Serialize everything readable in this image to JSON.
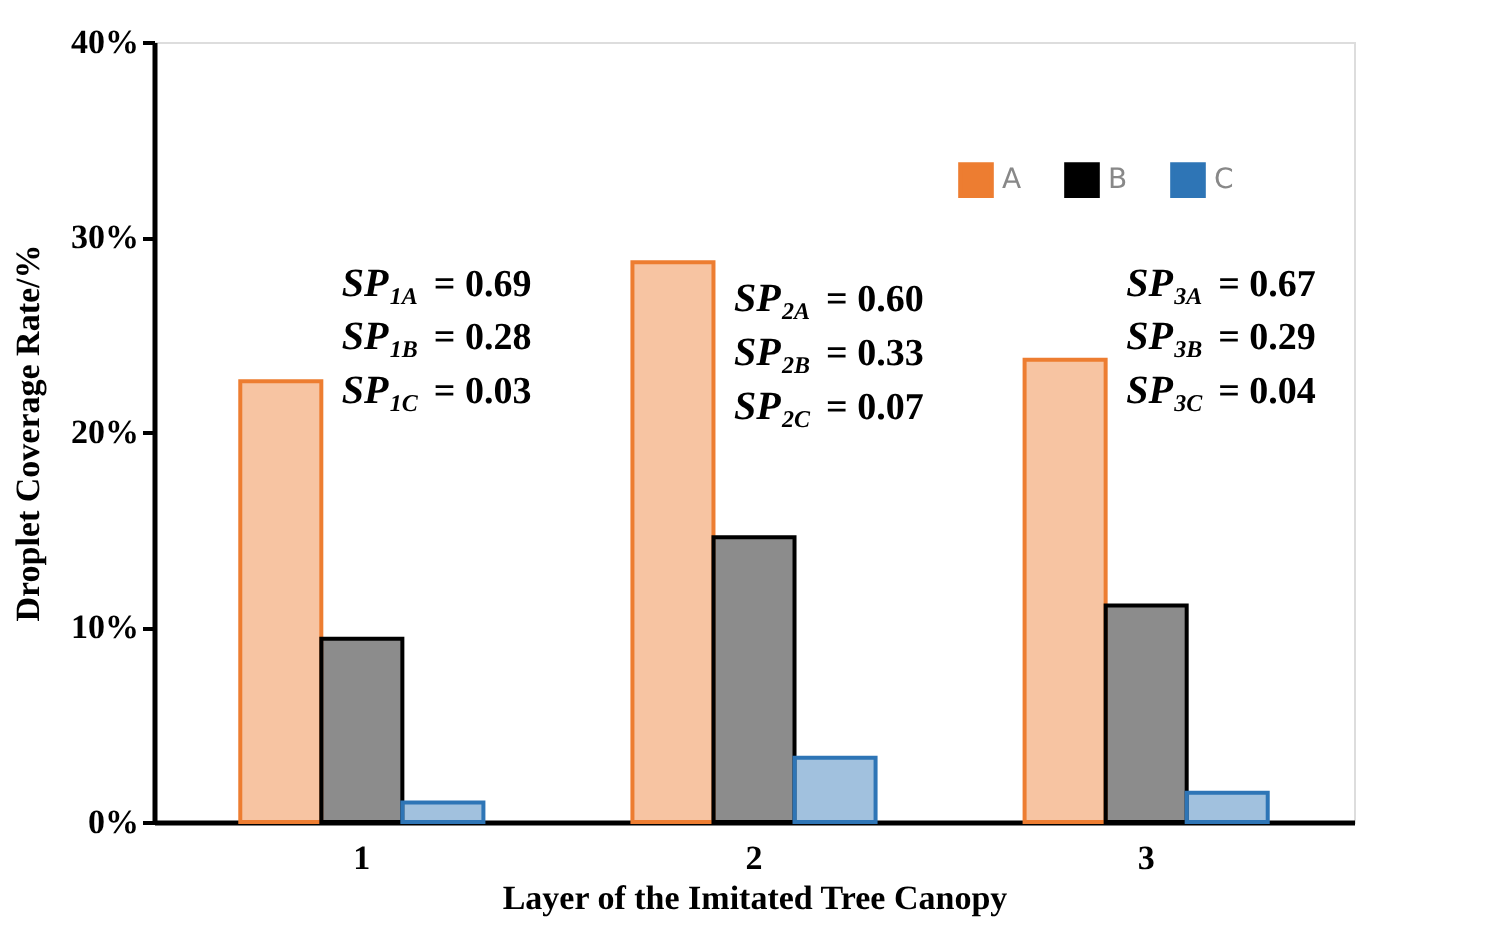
{
  "chart_data": {
    "type": "bar",
    "xlabel": "Layer of the Imitated Tree Canopy",
    "ylabel": "Droplet Coverage Rate/%",
    "categories": [
      "1",
      "2",
      "3"
    ],
    "series": [
      {
        "name": "A",
        "color": "#ed7d31",
        "values": [
          22.6,
          28.7,
          23.7
        ]
      },
      {
        "name": "B",
        "color": "#000000",
        "values": [
          9.4,
          14.6,
          11.1
        ]
      },
      {
        "name": "C",
        "color": "#2e75b6",
        "values": [
          1.0,
          3.3,
          1.5
        ]
      }
    ],
    "ylim": [
      0,
      40
    ],
    "yticks": [
      {
        "value": 0,
        "label": "0%"
      },
      {
        "value": 10,
        "label": "10%"
      },
      {
        "value": 20,
        "label": "20%"
      },
      {
        "value": 30,
        "label": "30%"
      },
      {
        "value": 40,
        "label": "40%"
      }
    ],
    "grid": false,
    "legend": "top right",
    "annotations": [
      "SP$_{1A}$ = 0.69",
      "SP$_{1B}$ = 0.28",
      "SP$_{1C}$ = 0.03",
      "SP$_{2A}$ = 0.60",
      "SP$_{2B}$ = 0.33",
      "SP$_{2C}$ = 0.07",
      "SP$_{3A}$ = 0.67",
      "SP$_{3B}$ = 0.29",
      "SP$_{3C}$ = 0.04"
    ]
  }
}
